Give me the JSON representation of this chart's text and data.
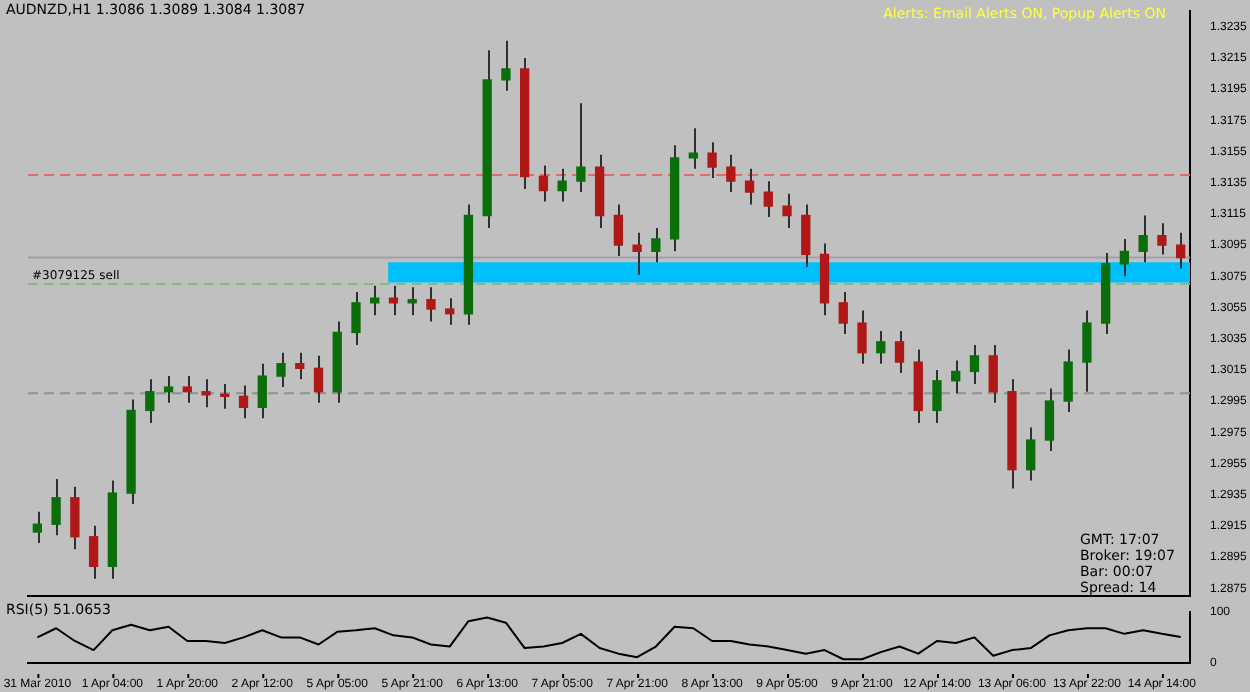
{
  "chart_data": [
    {
      "type": "candlestick",
      "title": "AUDNZD,H1 1.3086 1.3089 1.3084 1.3087",
      "categories": [
        "31 Mar 2010",
        null,
        null,
        null,
        "1 Apr 04:00",
        null,
        null,
        null,
        "1 Apr 20:00",
        null,
        null,
        null,
        "2 Apr 12:00",
        null,
        null,
        null,
        "5 Apr 05:00",
        null,
        null,
        null,
        "5 Apr 21:00",
        null,
        null,
        null,
        "6 Apr 13:00",
        null,
        null,
        null,
        "7 Apr 05:00",
        null,
        null,
        null,
        "7 Apr 21:00",
        null,
        null,
        null,
        "8 Apr 13:00",
        null,
        null,
        null,
        "9 Apr 05:00",
        null,
        null,
        null,
        "9 Apr 21:00",
        null,
        null,
        null,
        "12 Apr 14:00",
        null,
        null,
        null,
        "13 Apr 06:00",
        null,
        null,
        null,
        "13 Apr 22:00",
        null,
        null,
        null,
        "14 Apr 14:00",
        null
      ],
      "ohlc": [
        [
          1.2911,
          1.2924,
          1.2904,
          1.2916
        ],
        [
          1.2916,
          1.2945,
          1.2909,
          1.2933
        ],
        [
          1.2933,
          1.294,
          1.29,
          1.2908
        ],
        [
          1.2908,
          1.2915,
          1.2881,
          1.2889
        ],
        [
          1.2889,
          1.2944,
          1.2881,
          1.2936
        ],
        [
          1.2936,
          1.2996,
          1.2929,
          1.2989
        ],
        [
          1.2989,
          1.3009,
          1.2981,
          1.3001
        ],
        [
          1.3001,
          1.3011,
          1.2994,
          1.3004
        ],
        [
          1.3004,
          1.3011,
          1.2994,
          1.3001
        ],
        [
          1.3001,
          1.3009,
          1.2991,
          1.2999
        ],
        [
          1.2999,
          1.3006,
          1.299,
          1.2998
        ],
        [
          1.2998,
          1.3005,
          1.2984,
          1.2991
        ],
        [
          1.2991,
          1.3019,
          1.2984,
          1.3011
        ],
        [
          1.3011,
          1.3026,
          1.3004,
          1.3019
        ],
        [
          1.3019,
          1.3026,
          1.3009,
          1.3016
        ],
        [
          1.3016,
          1.3024,
          1.2994,
          1.3001
        ],
        [
          1.3001,
          1.3046,
          1.2994,
          1.3039
        ],
        [
          1.3039,
          1.3065,
          1.3031,
          1.3058
        ],
        [
          1.3058,
          1.3069,
          1.305,
          1.3061
        ],
        [
          1.3061,
          1.3069,
          1.305,
          1.3058
        ],
        [
          1.3058,
          1.3068,
          1.305,
          1.306
        ],
        [
          1.306,
          1.3068,
          1.3046,
          1.3054
        ],
        [
          1.3054,
          1.3061,
          1.3044,
          1.3051
        ],
        [
          1.3051,
          1.3121,
          1.3044,
          1.3114
        ],
        [
          1.3114,
          1.322,
          1.3106,
          1.3201
        ],
        [
          1.3201,
          1.3226,
          1.3194,
          1.3208
        ],
        [
          1.3208,
          1.3215,
          1.3131,
          1.3139
        ],
        [
          1.3139,
          1.3146,
          1.3123,
          1.313
        ],
        [
          1.313,
          1.3144,
          1.3123,
          1.3136
        ],
        [
          1.3136,
          1.3186,
          1.3129,
          1.3145
        ],
        [
          1.3145,
          1.3153,
          1.3106,
          1.3114
        ],
        [
          1.3114,
          1.3121,
          1.3088,
          1.3095
        ],
        [
          1.3095,
          1.3103,
          1.3076,
          1.3091
        ],
        [
          1.3091,
          1.3106,
          1.3084,
          1.3099
        ],
        [
          1.3099,
          1.3159,
          1.3091,
          1.3151
        ],
        [
          1.3151,
          1.317,
          1.3144,
          1.3154
        ],
        [
          1.3154,
          1.3161,
          1.3138,
          1.3145
        ],
        [
          1.3145,
          1.3153,
          1.3129,
          1.3136
        ],
        [
          1.3136,
          1.3144,
          1.3121,
          1.3129
        ],
        [
          1.3129,
          1.3136,
          1.3113,
          1.312
        ],
        [
          1.312,
          1.3128,
          1.3106,
          1.3114
        ],
        [
          1.3114,
          1.3121,
          1.3081,
          1.3089
        ],
        [
          1.3089,
          1.3096,
          1.305,
          1.3058
        ],
        [
          1.3058,
          1.3065,
          1.3038,
          1.3045
        ],
        [
          1.3045,
          1.3053,
          1.3019,
          1.3026
        ],
        [
          1.3026,
          1.304,
          1.3019,
          1.3033
        ],
        [
          1.3033,
          1.304,
          1.3013,
          1.302
        ],
        [
          1.302,
          1.3028,
          1.2981,
          1.2989
        ],
        [
          1.2989,
          1.3015,
          1.2981,
          1.3008
        ],
        [
          1.3008,
          1.3021,
          1.3,
          1.3014
        ],
        [
          1.3014,
          1.3031,
          1.3006,
          1.3024
        ],
        [
          1.3024,
          1.3031,
          1.2994,
          1.3001
        ],
        [
          1.3001,
          1.3009,
          1.2939,
          1.2951
        ],
        [
          1.2951,
          1.2978,
          1.2944,
          1.297
        ],
        [
          1.297,
          1.3003,
          1.2963,
          1.2995
        ],
        [
          1.2995,
          1.3028,
          1.2988,
          1.302
        ],
        [
          1.302,
          1.3053,
          1.3001,
          1.3045
        ],
        [
          1.3045,
          1.309,
          1.3038,
          1.3083
        ],
        [
          1.3083,
          1.3099,
          1.3075,
          1.3091
        ],
        [
          1.3091,
          1.3114,
          1.3084,
          1.3101
        ],
        [
          1.3101,
          1.3109,
          1.3089,
          1.3095
        ],
        [
          1.3095,
          1.3103,
          1.308,
          1.3087
        ]
      ],
      "colors": [
        "#0a6e0a",
        "#0a6e0a",
        "#b01818",
        "#b01818",
        "#0a6e0a",
        "#0a6e0a",
        "#0a6e0a",
        "#0a6e0a",
        "#b01818",
        "#b01818",
        "#b01818",
        "#b01818",
        "#0a6e0a",
        "#0a6e0a",
        "#b01818",
        "#b01818",
        "#0a6e0a",
        "#0a6e0a",
        "#0a6e0a",
        "#b01818",
        "#0a6e0a",
        "#b01818",
        "#b01818",
        "#0a6e0a",
        "#0a6e0a",
        "#0a6e0a",
        "#b01818",
        "#b01818",
        "#0a6e0a",
        "#0a6e0a",
        "#b01818",
        "#b01818",
        "#b01818",
        "#0a6e0a",
        "#0a6e0a",
        "#0a6e0a",
        "#b01818",
        "#b01818",
        "#b01818",
        "#b01818",
        "#b01818",
        "#b01818",
        "#b01818",
        "#b01818",
        "#b01818",
        "#0a6e0a",
        "#b01818",
        "#b01818",
        "#0a6e0a",
        "#0a6e0a",
        "#0a6e0a",
        "#b01818",
        "#b01818",
        "#0a6e0a",
        "#0a6e0a",
        "#0a6e0a",
        "#0a6e0a",
        "#0a6e0a",
        "#0a6e0a",
        "#0a6e0a",
        "#b01818",
        "#b01818"
      ],
      "ylim": [
        1.287,
        1.3245
      ],
      "yticks": [
        1.2875,
        1.2895,
        1.2915,
        1.2935,
        1.2955,
        1.2975,
        1.2995,
        1.3015,
        1.3035,
        1.3055,
        1.3075,
        1.3095,
        1.3115,
        1.3135,
        1.3155,
        1.3175,
        1.3195,
        1.3215,
        1.3235
      ],
      "bands": [
        {
          "axis": "y",
          "from": 1.3071,
          "to": 1.3084,
          "color": "#00bfff"
        }
      ],
      "ref_lines": [
        {
          "axis": "y",
          "value": 1.314,
          "color": "#e06a6a",
          "line_style": "dashed"
        },
        {
          "axis": "y",
          "value": 1.3087,
          "color": "#a0a0a8",
          "line_style": "solid"
        },
        {
          "axis": "y",
          "value": 1.307,
          "label": "#3079125 sell",
          "color": "#7fbf7f",
          "line_style": "dashed"
        },
        {
          "axis": "y",
          "value": 1.3,
          "color": "#909090",
          "line_style": "dashed"
        }
      ],
      "annotations": [
        "Alerts: Email Alerts ON, Popup Alerts ON",
        "GMT: 17:07",
        "Broker: 19:07",
        "Bar: 00:07",
        "Spread: 14"
      ]
    },
    {
      "type": "line",
      "title": "RSI(5) 51.0653",
      "tick_labels": "y",
      "categories": [
        null,
        null,
        null,
        null,
        null,
        null,
        null,
        null,
        null,
        null,
        null,
        null,
        null,
        null,
        null,
        null,
        null,
        null,
        null,
        null,
        null,
        null,
        null,
        null,
        null,
        null,
        null,
        null,
        null,
        null,
        null,
        null,
        null,
        null,
        null,
        null,
        null,
        null,
        null,
        null,
        null,
        null,
        null,
        null,
        null,
        null,
        null,
        null,
        null,
        null,
        null,
        null,
        null,
        null,
        null,
        null,
        null,
        null,
        null,
        null,
        null,
        null
      ],
      "series": [
        {
          "color": "#000000",
          "values": [
            50,
            68,
            43,
            25,
            64,
            75,
            64,
            71,
            43,
            43,
            39,
            50,
            64,
            50,
            50,
            36,
            61,
            64,
            68,
            54,
            50,
            36,
            32,
            82,
            89,
            79,
            29,
            32,
            39,
            57,
            29,
            18,
            11,
            32,
            71,
            68,
            43,
            43,
            36,
            32,
            25,
            18,
            25,
            7,
            7,
            21,
            32,
            18,
            43,
            39,
            50,
            14,
            25,
            29,
            54,
            64,
            68,
            68,
            57,
            64,
            57,
            51
          ]
        }
      ],
      "ylim": [
        0,
        100
      ],
      "yticks": [
        0,
        100
      ]
    }
  ]
}
